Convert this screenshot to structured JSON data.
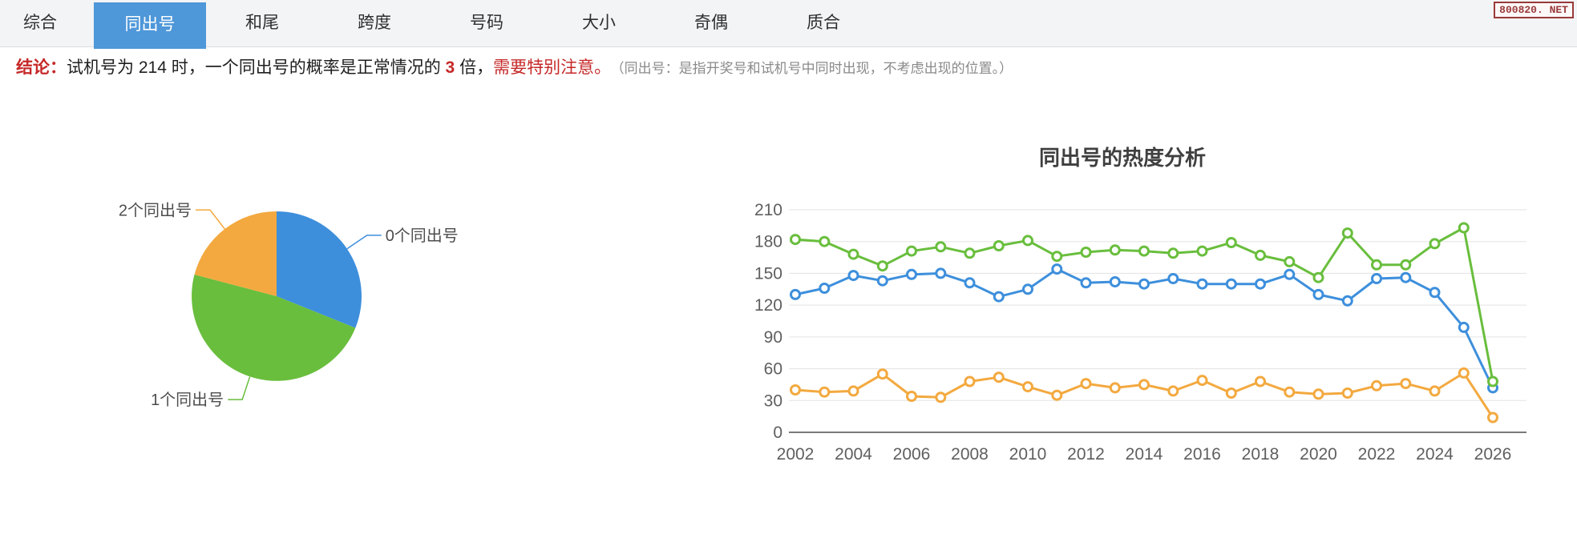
{
  "tabbar": {
    "tabs": [
      {
        "label": "综合",
        "active": false
      },
      {
        "label": "同出号",
        "active": true
      },
      {
        "label": "和尾",
        "active": false
      },
      {
        "label": "跨度",
        "active": false
      },
      {
        "label": "号码",
        "active": false
      },
      {
        "label": "大小",
        "active": false
      },
      {
        "label": "奇偶",
        "active": false
      },
      {
        "label": "质合",
        "active": false
      }
    ]
  },
  "watermark": "800820. NET",
  "conclusion": {
    "prefix": "结论：",
    "text_before": "试机号为 214 时，一个同出号的概率是正常情况的 ",
    "multiplier": "3",
    "text_after": " 倍，",
    "warning": "需要特别注意。",
    "note": "（同出号：是指开奖号和试机号中同时出现，不考虑出现的位置。）"
  },
  "colors": {
    "blue": "#3d8fdc",
    "green": "#69be3d",
    "orange": "#f3a93f",
    "active_tab": "#4e97d9",
    "red": "#c62828"
  },
  "chart_data": [
    {
      "type": "pie",
      "start_angle_deg": 0,
      "direction": "clockwise",
      "slices": [
        {
          "label": "0个同出号",
          "percent": 31.1,
          "color_key": "blue"
        },
        {
          "label": "1个同出号",
          "percent": 48.0,
          "color_key": "green"
        },
        {
          "label": "2个同出号",
          "percent": 20.9,
          "color_key": "orange"
        }
      ]
    },
    {
      "type": "line",
      "title": "同出号的热度分析",
      "x": [
        2002,
        2003,
        2004,
        2005,
        2006,
        2007,
        2008,
        2009,
        2010,
        2011,
        2012,
        2013,
        2014,
        2015,
        2016,
        2017,
        2018,
        2019,
        2020,
        2021,
        2022,
        2023,
        2024,
        2025,
        2026
      ],
      "x_tick_labels": [
        "2002",
        "2004",
        "2006",
        "2008",
        "2010",
        "2012",
        "2014",
        "2016",
        "2018",
        "2020",
        "2022",
        "2024",
        "2026"
      ],
      "ylim": [
        0,
        210
      ],
      "y_ticks": [
        0,
        30,
        60,
        90,
        120,
        150,
        180,
        210
      ],
      "grid": true,
      "legend": "none",
      "series": [
        {
          "name": "2个同出号",
          "color_key": "orange",
          "values": [
            40,
            38,
            39,
            55,
            34,
            33,
            48,
            52,
            43,
            35,
            46,
            42,
            45,
            39,
            49,
            37,
            48,
            38,
            36,
            37,
            44,
            46,
            39,
            56,
            14
          ]
        },
        {
          "name": "0个同出号",
          "color_key": "blue",
          "values": [
            130,
            136,
            148,
            143,
            149,
            150,
            141,
            128,
            135,
            154,
            141,
            142,
            140,
            145,
            140,
            140,
            140,
            149,
            130,
            124,
            145,
            146,
            132,
            99,
            42
          ]
        },
        {
          "name": "1个同出号",
          "color_key": "green",
          "values": [
            182,
            180,
            168,
            157,
            171,
            175,
            169,
            176,
            181,
            166,
            170,
            172,
            171,
            169,
            171,
            179,
            167,
            161,
            146,
            188,
            158,
            158,
            178,
            193,
            48
          ]
        }
      ]
    }
  ]
}
